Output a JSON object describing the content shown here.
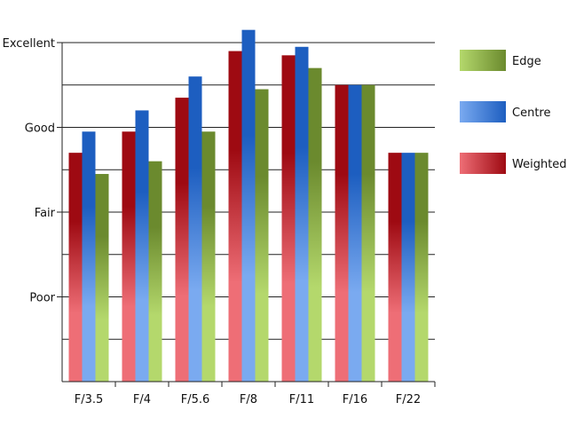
{
  "chart_data": {
    "type": "bar",
    "categories": [
      "F/3.5",
      "F/4",
      "F/5.6",
      "F/8",
      "F/11",
      "F/16",
      "F/22"
    ],
    "y_tick_labels": [
      {
        "label": "Poor",
        "value": 2
      },
      {
        "label": "Fair",
        "value": 4
      },
      {
        "label": "Good",
        "value": 6
      },
      {
        "label": "Excellent",
        "value": 8
      }
    ],
    "ylim": [
      0,
      8
    ],
    "grid": true,
    "legend_position": "right",
    "series": [
      {
        "name": "Weighted",
        "values": [
          5.4,
          5.9,
          6.7,
          7.8,
          7.7,
          7.0,
          5.4
        ],
        "color_top": "#9e0a12",
        "color_bottom": "#ee6e76"
      },
      {
        "name": "Centre",
        "values": [
          5.9,
          6.4,
          7.2,
          8.3,
          7.9,
          7.0,
          5.4
        ],
        "color_top": "#1d5ec0",
        "color_bottom": "#7aaaf0"
      },
      {
        "name": "Edge",
        "values": [
          4.9,
          5.2,
          5.9,
          6.9,
          7.4,
          7.0,
          5.4
        ],
        "color_top": "#6b8a2e",
        "color_bottom": "#b4d86c"
      }
    ],
    "legend_order": [
      "Edge",
      "Centre",
      "Weighted"
    ]
  }
}
